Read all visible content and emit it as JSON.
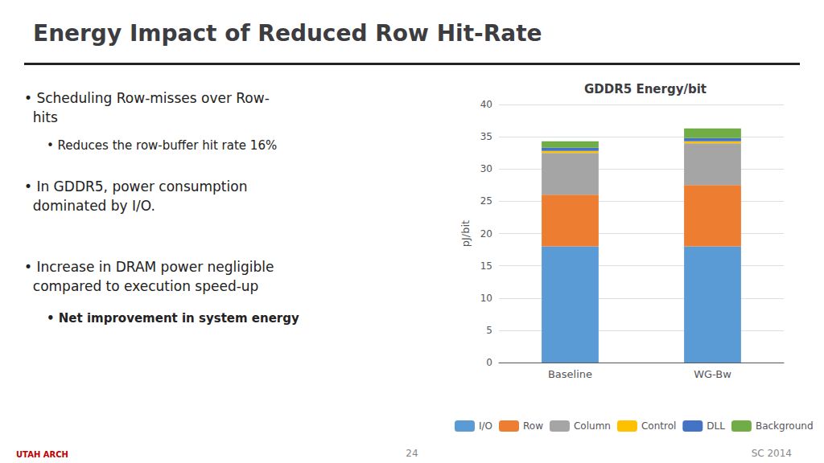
{
  "chart_data": {
    "type": "bar",
    "title": "Energy Impact of Reduced Row Hit-Rate",
    "subtitle": "GDDR5 Energy/bit",
    "ylabel": "pJ/bit",
    "categories": [
      "Baseline",
      "WG-Bw"
    ],
    "series": [
      {
        "name": "I/O",
        "color": "#5B9BD5",
        "values": [
          18.0,
          18.0
        ]
      },
      {
        "name": "Row",
        "color": "#ED7D31",
        "values": [
          8.0,
          9.5
        ]
      },
      {
        "name": "Column",
        "color": "#A5A5A5",
        "values": [
          6.5,
          6.5
        ]
      },
      {
        "name": "Control",
        "color": "#FFC000",
        "values": [
          0.3,
          0.3
        ]
      },
      {
        "name": "DLL",
        "color": "#4472C4",
        "values": [
          0.5,
          0.5
        ]
      },
      {
        "name": "Background",
        "color": "#70AD47",
        "values": [
          1.0,
          1.5
        ]
      }
    ],
    "stacked": true,
    "ylim": [
      0,
      40
    ],
    "yticks": [
      0,
      5,
      10,
      15,
      20,
      25,
      30,
      35,
      40
    ],
    "grid": true,
    "legend": "bottom",
    "annotations": [
      "• Scheduling Row-misses over Row-\n  hits",
      "• Reduces the row-buffer hit rate 16%",
      "• In GDDR5, power consumption\n  dominated by I/O.",
      "• Increase in DRAM power negligible\n  compared to execution speed-up",
      "• Net improvement in system energy",
      "24",
      "SC 2014",
      "UTAH ARCH"
    ]
  }
}
